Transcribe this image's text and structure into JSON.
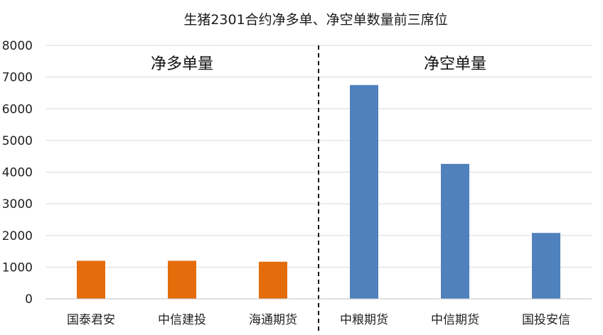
{
  "chart_data": {
    "type": "bar",
    "title": "生猪2301合约净多单、净空单数量前三席位",
    "categories": [
      "国泰君安",
      "中信建投",
      "海通期货",
      "中粮期货",
      "中信期货",
      "国投安信"
    ],
    "values": [
      1200,
      1200,
      1170,
      6750,
      4260,
      2080
    ],
    "colors": [
      "#E46C0A",
      "#E46C0A",
      "#E46C0A",
      "#4F81BD",
      "#4F81BD",
      "#4F81BD"
    ],
    "groups": [
      {
        "label": "净多单量",
        "categories": [
          "国泰君安",
          "中信建投",
          "海通期货"
        ],
        "color": "#E46C0A"
      },
      {
        "label": "净空单量",
        "categories": [
          "中粮期货",
          "中信期货",
          "国投安信"
        ],
        "color": "#4F81BD"
      }
    ],
    "y_ticks": [
      "0",
      "1000",
      "2000",
      "3000",
      "4000",
      "5000",
      "6000",
      "7000",
      "8000"
    ],
    "ylim": [
      0,
      8000
    ],
    "xlabel": "",
    "ylabel": "",
    "grid": true,
    "divider": "dashed line between 海通期货 and 中粮期货"
  }
}
